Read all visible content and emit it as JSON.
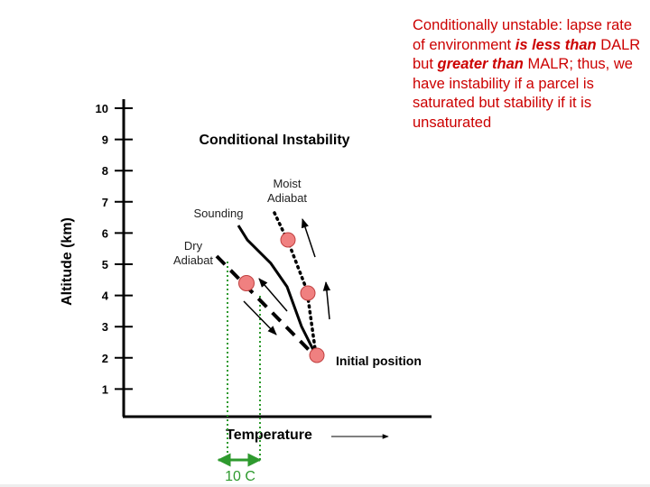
{
  "note": {
    "part1": "Conditionally unstable: lapse rate of environment ",
    "bold1": "is less than",
    "part2": " DALR but ",
    "bold2": "greater than",
    "part3": " MALR; thus, we have instability if a parcel is saturated but stability if it is unsaturated",
    "color": "#cc0000"
  },
  "diagram": {
    "title": "Conditional Instability",
    "y_axis_label": "Altitude (km)",
    "x_axis_label": "Temperature",
    "y_ticks": [
      "10",
      "9",
      "8",
      "7",
      "6",
      "5",
      "4",
      "3",
      "2",
      "1"
    ],
    "labels": {
      "sounding": "Sounding",
      "moist_line1": "Moist",
      "moist_line2": "Adiabat",
      "dry_line1": "Dry",
      "dry_line2": "Adiabat",
      "initial": "Initial position",
      "interval": "10 C"
    },
    "colors": {
      "parcel": "#f08080",
      "guide": "#2e9a2e"
    }
  }
}
